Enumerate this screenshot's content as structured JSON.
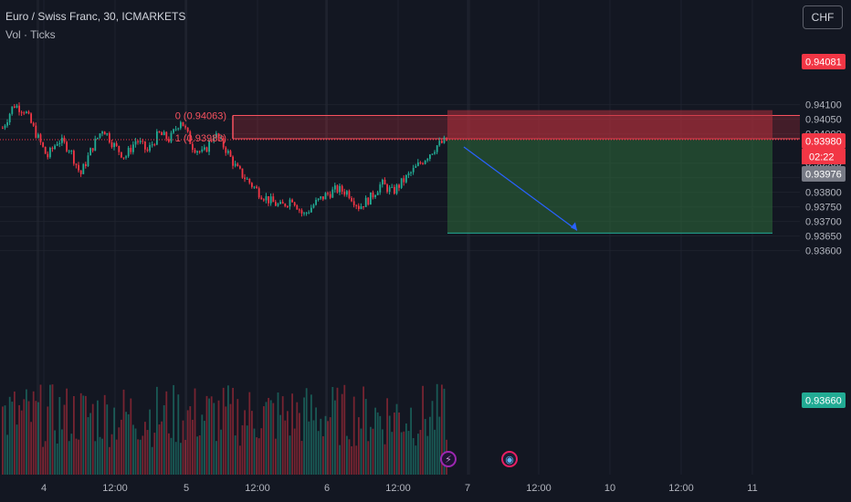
{
  "legend": {
    "title": "Euro / Swiss Franc, 30, ICMARKETS",
    "volume": "Vol · Ticks"
  },
  "currency_button": "CHF",
  "price_axis": {
    "ticks": [
      "0.94100",
      "0.94050",
      "0.94000",
      "0.93900",
      "0.93850",
      "0.93800",
      "0.93750",
      "0.93700",
      "0.93650",
      "0.93600"
    ],
    "tick_values": [
      0.941,
      0.9405,
      0.94,
      0.939,
      0.9385,
      0.938,
      0.9375,
      0.937,
      0.9365,
      0.936
    ],
    "labels": {
      "stop": {
        "text": "0.94081",
        "value": 0.94081,
        "color": "#f23645"
      },
      "current": {
        "text": "0.93980",
        "value": 0.9398,
        "color": "#f23645"
      },
      "countdown": "02:22",
      "bid": {
        "text": "0.93976",
        "value": 0.93976,
        "color": "#787b86"
      },
      "target": {
        "text": "0.93660",
        "value": 0.9366,
        "color": "#22ab94"
      }
    }
  },
  "time_axis": {
    "ticks": [
      "4",
      "12:00",
      "5",
      "12:00",
      "6",
      "12:00",
      "7",
      "12:00",
      "10",
      "12:00",
      "11"
    ]
  },
  "fib": {
    "level0": "0 (0.94063)",
    "level1": "1 (0.93983)"
  },
  "icons": {
    "event1": "lightning-icon",
    "event2": "globe-icon"
  },
  "colors": {
    "up": "#22ab94",
    "down": "#f23645",
    "background": "#131722"
  },
  "chart_data": {
    "type": "candlestick",
    "symbol": "Euro / Swiss Franc",
    "timeframe": "30",
    "exchange": "ICMARKETS",
    "ylim": [
      0.9358,
      0.94115
    ],
    "fib_retracement": {
      "level_0": 0.94063,
      "level_1": 0.93983
    },
    "position": {
      "type": "short",
      "entry": 0.9398,
      "stop": 0.94081,
      "target": 0.9366
    },
    "close_path": [
      0.9402,
      0.941,
      0.9408,
      0.94,
      0.9392,
      0.9398,
      0.9395,
      0.9386,
      0.9395,
      0.9402,
      0.9396,
      0.9392,
      0.9398,
      0.9394,
      0.94,
      0.9398,
      0.9405,
      0.9396,
      0.9393,
      0.94,
      0.9395,
      0.9388,
      0.9384,
      0.938,
      0.9377,
      0.9375,
      0.9378,
      0.9372,
      0.9376,
      0.9379,
      0.9381,
      0.938,
      0.9375,
      0.9378,
      0.9383,
      0.938,
      0.9384,
      0.9388,
      0.9392,
      0.9396,
      0.9398
    ]
  }
}
